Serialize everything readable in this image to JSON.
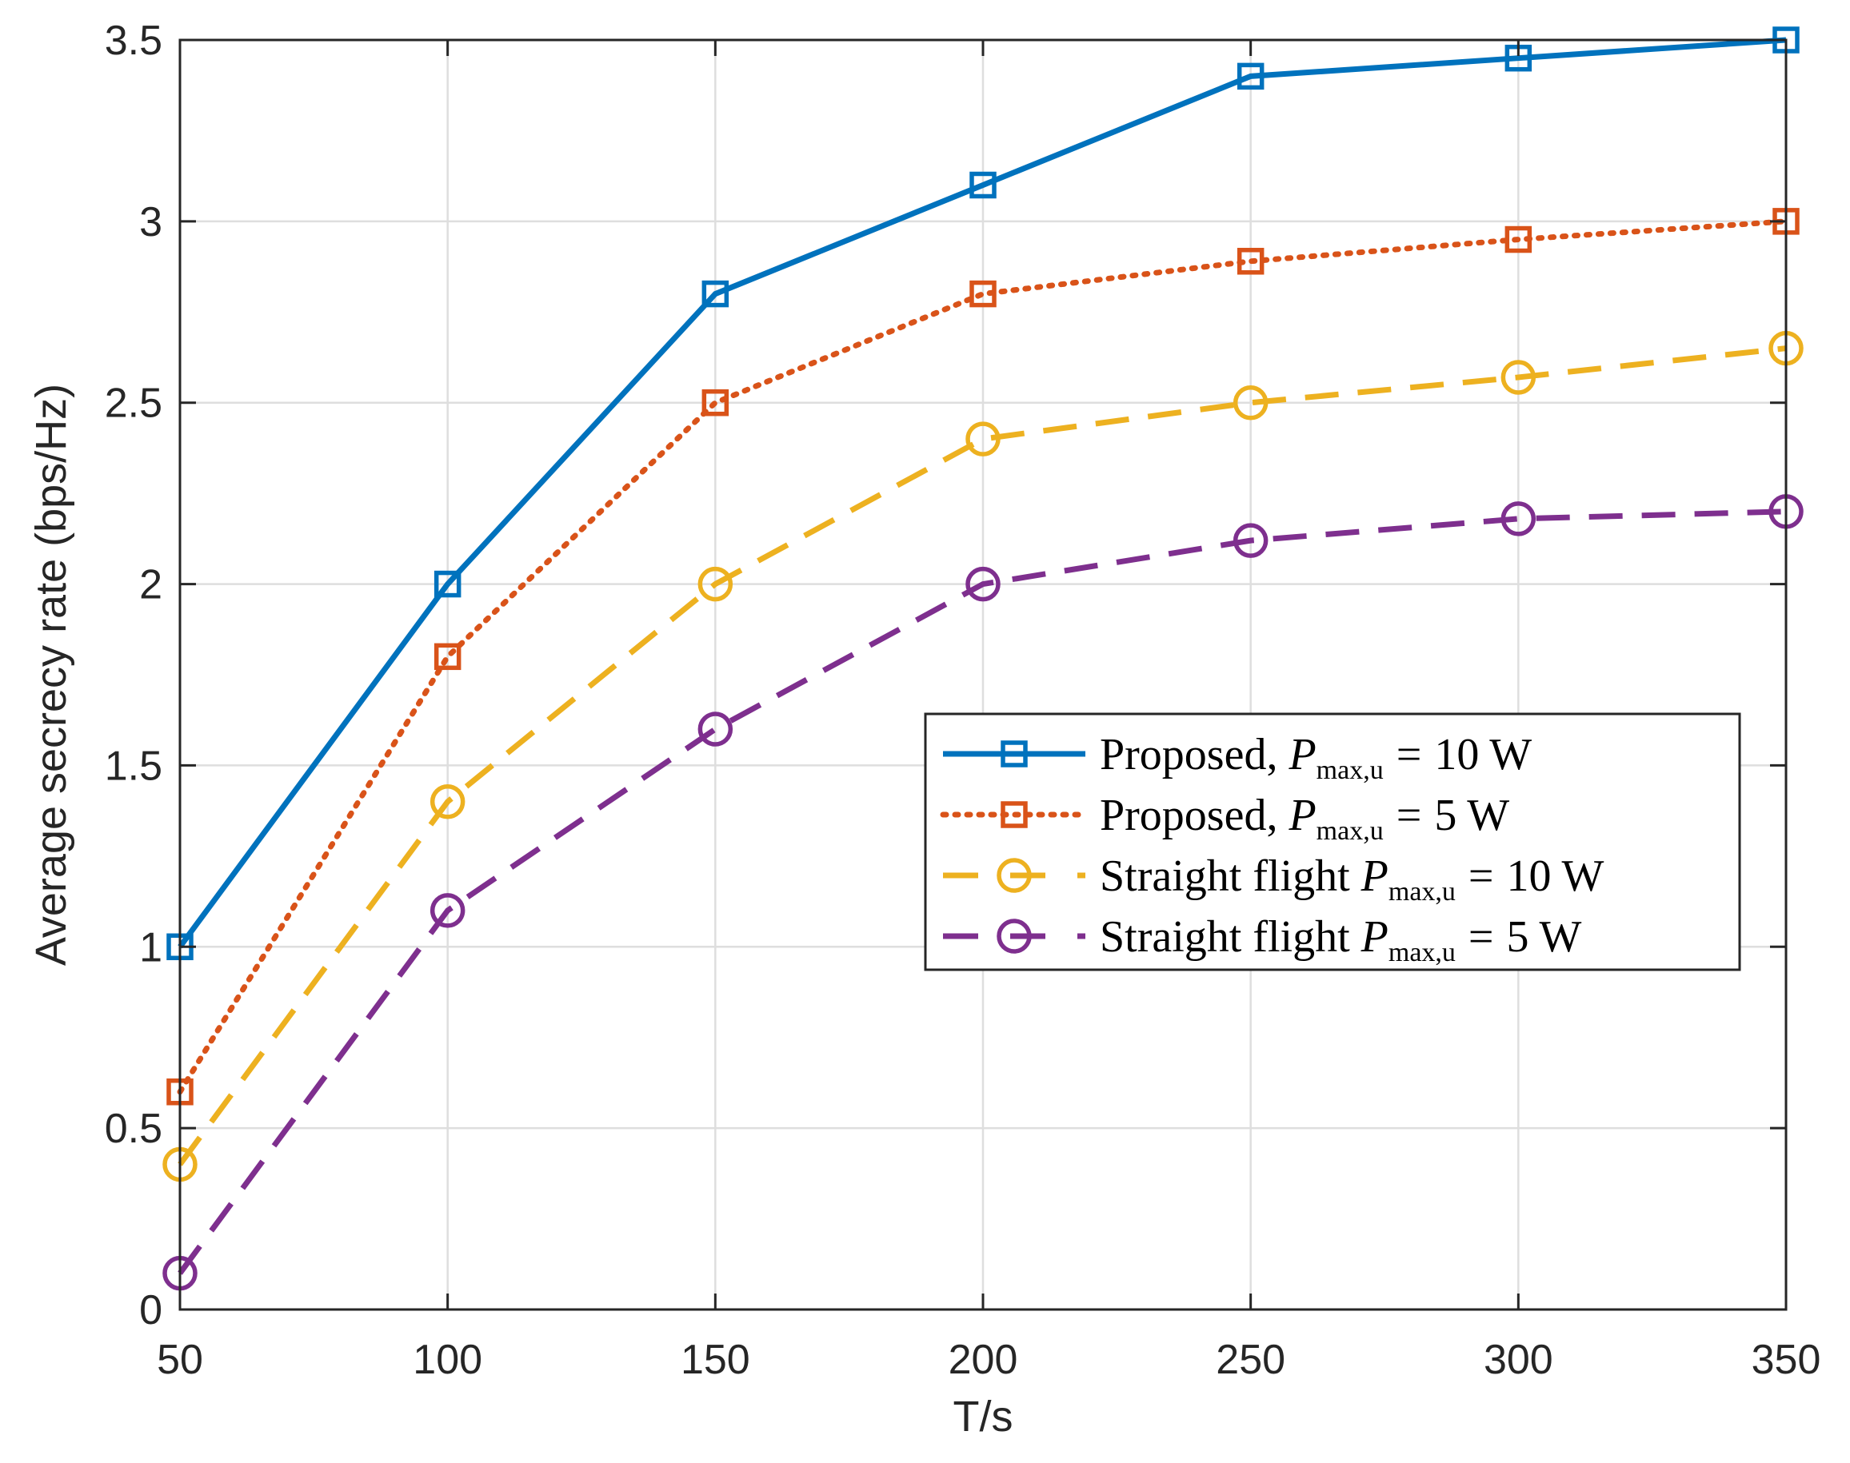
{
  "chart_data": {
    "type": "line",
    "title": "",
    "xlabel": "T/s",
    "ylabel": "Average secrecy rate (bps/Hz)",
    "xlim": [
      50,
      350
    ],
    "ylim": [
      0,
      3.5
    ],
    "xticks": [
      50,
      100,
      150,
      200,
      250,
      300,
      350
    ],
    "yticks": [
      0,
      0.5,
      1,
      1.5,
      2,
      2.5,
      3,
      3.5
    ],
    "xtick_labels": [
      "50",
      "100",
      "150",
      "200",
      "250",
      "300",
      "350"
    ],
    "ytick_labels": [
      "0",
      "0.5",
      "1",
      "1.5",
      "2",
      "2.5",
      "3",
      "3.5"
    ],
    "grid": true,
    "legend_position": "center-right",
    "x": [
      50,
      100,
      150,
      200,
      250,
      300,
      350
    ],
    "series": [
      {
        "name": "Proposed, P_{max,u} = 10 W",
        "legend_prefix": "Proposed, ",
        "legend_value": "10 W",
        "values": [
          1.0,
          2.0,
          2.8,
          3.1,
          3.4,
          3.45,
          3.5
        ],
        "color": "#0072BD",
        "line_style": "solid",
        "marker": "square"
      },
      {
        "name": "Proposed, P_{max,u} = 5 W",
        "legend_prefix": "Proposed, ",
        "legend_value": "5 W",
        "values": [
          0.6,
          1.8,
          2.5,
          2.8,
          2.89,
          2.95,
          3.0
        ],
        "color": "#D95319",
        "line_style": "dotted",
        "marker": "square"
      },
      {
        "name": "Straight flight P_{max,u} = 10 W",
        "legend_prefix": "Straight flight ",
        "legend_value": "10 W",
        "values": [
          0.4,
          1.4,
          2.0,
          2.4,
          2.5,
          2.57,
          2.65
        ],
        "color": "#EDB120",
        "line_style": "dashed",
        "marker": "circle"
      },
      {
        "name": "Straight flight P_{max,u} = 5 W",
        "legend_prefix": "Straight flight ",
        "legend_value": "5 W",
        "values": [
          0.1,
          1.1,
          1.6,
          2.0,
          2.12,
          2.18,
          2.2
        ],
        "color": "#7E2F8E",
        "line_style": "dashed",
        "marker": "circle"
      }
    ],
    "legend_math": {
      "symbol": "P",
      "subscript": "max,u",
      "equals": "="
    }
  }
}
